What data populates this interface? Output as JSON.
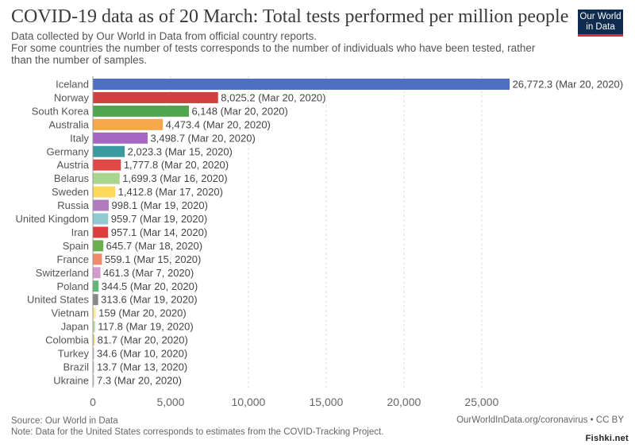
{
  "header": {
    "title": "COVID-19 data as of 20 March: Total tests performed per million people",
    "subtitle_lines": [
      "Data collected by Our World in Data from official country reports.",
      "For some countries the number of tests corresponds to the number of individuals who have been tested, rather",
      "than the number of samples."
    ]
  },
  "logo": {
    "line1": "Our World",
    "line2": "in Data"
  },
  "footer": {
    "source": "Source: Our World in Data",
    "note": "Note: Data for the United States corresponds to estimates from the COVID-Tracking Project.",
    "site": "OurWorldInData.org/coronavirus • CC BY",
    "watermark": "Fishki.net"
  },
  "chart_data": {
    "type": "bar",
    "orientation": "horizontal",
    "categories": [
      "Iceland",
      "Norway",
      "South Korea",
      "Australia",
      "Italy",
      "Germany",
      "Austria",
      "Belarus",
      "Sweden",
      "Russia",
      "United Kingdom",
      "Iran",
      "Spain",
      "France",
      "Switzerland",
      "Poland",
      "United States",
      "Vietnam",
      "Japan",
      "Colombia",
      "Turkey",
      "Brazil",
      "Ukraine"
    ],
    "values": [
      26772.3,
      8025.2,
      6148,
      4473.4,
      3498.7,
      2023.3,
      1777.8,
      1699.3,
      1412.8,
      998.1,
      959.7,
      957.1,
      645.7,
      559.1,
      461.3,
      344.5,
      313.6,
      159,
      117.8,
      81.7,
      34.6,
      13.7,
      7.3
    ],
    "value_labels": [
      "26,772.3",
      "8,025.2",
      "6,148",
      "4,473.4",
      "3,498.7",
      "2,023.3",
      "1,777.8",
      "1,699.3",
      "1,412.8",
      "998.1",
      "959.7",
      "957.1",
      "645.7",
      "559.1",
      "461.3",
      "344.5",
      "313.6",
      "159",
      "117.8",
      "81.7",
      "34.6",
      "13.7",
      "7.3"
    ],
    "dates": [
      "(Mar 20, 2020)",
      "(Mar 20, 2020)",
      "(Mar 20, 2020)",
      "(Mar 20, 2020)",
      "(Mar 20, 2020)",
      "(Mar 15, 2020)",
      "(Mar 20, 2020)",
      "(Mar 16, 2020)",
      "(Mar 17, 2020)",
      "(Mar 19, 2020)",
      "(Mar 19, 2020)",
      "(Mar 14, 2020)",
      "(Mar 18, 2020)",
      "(Mar 15, 2020)",
      "(Mar 7, 2020)",
      "(Mar 20, 2020)",
      "(Mar 19, 2020)",
      "(Mar 20, 2020)",
      "(Mar 19, 2020)",
      "(Mar 20, 2020)",
      "(Mar 10, 2020)",
      "(Mar 13, 2020)",
      "(Mar 20, 2020)"
    ],
    "colors": [
      "#4c6fbf",
      "#d13f3f",
      "#4fa64f",
      "#f5a84a",
      "#a866c4",
      "#3a9a9e",
      "#e04848",
      "#a8d68f",
      "#fdd85a",
      "#b07cc0",
      "#8fcad3",
      "#dd3c3c",
      "#6ab04c",
      "#ef8a6a",
      "#d49bce",
      "#5fb878",
      "#888888",
      "#fde98a",
      "#b8e0a0",
      "#e3d46a",
      "#bfbfbf",
      "#bcbcbc",
      "#c6c6c6"
    ],
    "xticks": [
      0,
      5000,
      10000,
      15000,
      20000,
      25000
    ],
    "xtick_labels": [
      "0",
      "5,000",
      "10,000",
      "15,000",
      "20,000",
      "25,000"
    ],
    "xlim": [
      0,
      27000
    ],
    "grid": "vertical dashed"
  }
}
